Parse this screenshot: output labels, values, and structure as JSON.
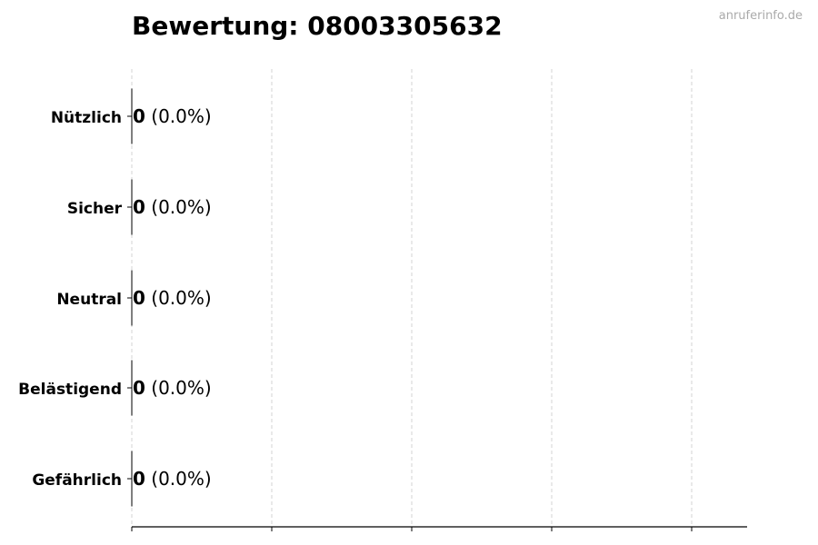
{
  "watermark": "anruferinfo.de",
  "chart_data": {
    "type": "bar",
    "orientation": "horizontal",
    "title": "Bewertung: 08003305632",
    "categories": [
      "Nützlich",
      "Sicher",
      "Neutral",
      "Belästigend",
      "Gefährlich"
    ],
    "values": [
      0,
      0,
      0,
      0,
      0
    ],
    "value_labels": [
      "0",
      "0",
      "0",
      "0",
      "0"
    ],
    "percent_labels": [
      "(0.0%)",
      "(0.0%)",
      "(0.0%)",
      "(0.0%)",
      "(0.0%)"
    ],
    "xlabel": "",
    "ylabel": "",
    "x_tick_count": 5,
    "x_tick_labels_shown": false,
    "grid": "x, dashed",
    "grid_color": "#d3d3d3",
    "bar_edge_color": "#000000"
  }
}
